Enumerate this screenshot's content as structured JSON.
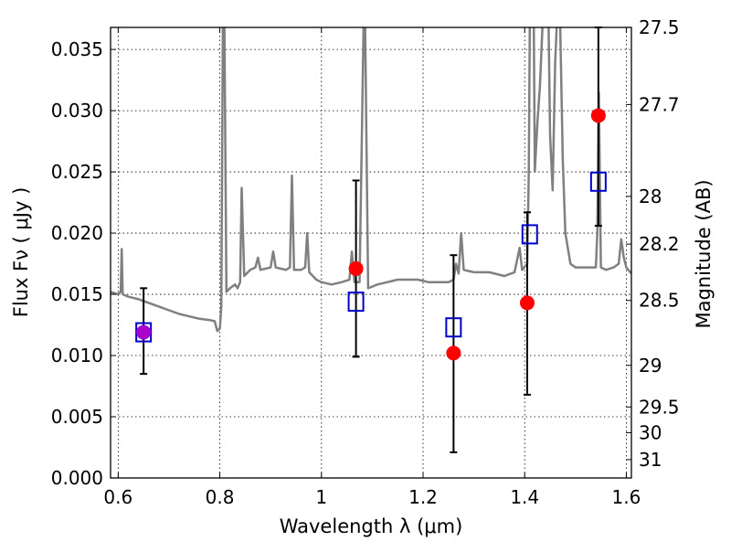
{
  "chart_data": {
    "type": "scatter",
    "xlabel": "Wavelength  λ (μm)",
    "ylabel": "Flux  Fν  ( μJy )",
    "y2label": "Magnitude (AB)",
    "xlim": [
      0.585,
      1.61
    ],
    "ylim": [
      0.0,
      0.0368
    ],
    "grid": true,
    "x_ticks": [
      0.6,
      0.8,
      1.0,
      1.2,
      1.4,
      1.6
    ],
    "x_tick_labels": [
      "0.6",
      "0.8",
      "1",
      "1.2",
      "1.4",
      "1.6"
    ],
    "y_ticks": [
      0.0,
      0.005,
      0.01,
      0.015,
      0.02,
      0.025,
      0.03,
      0.035
    ],
    "y_tick_labels": [
      "0.000",
      "0.005",
      "0.010",
      "0.015",
      "0.020",
      "0.025",
      "0.030",
      "0.035"
    ],
    "y2_ticks": [
      {
        "flux": 0.0368,
        "label": "27.5"
      },
      {
        "flux": 0.0305,
        "label": "27.7"
      },
      {
        "flux": 0.023,
        "label": "28"
      },
      {
        "flux": 0.0191,
        "label": "28.2"
      },
      {
        "flux": 0.0145,
        "label": "28.5"
      },
      {
        "flux": 0.0092,
        "label": "29"
      },
      {
        "flux": 0.0058,
        "label": "29.5"
      },
      {
        "flux": 0.0037,
        "label": "30"
      },
      {
        "flux": 0.0015,
        "label": "31"
      }
    ],
    "colors": {
      "template": "#808080",
      "observed": "#ff0000",
      "model": "#0000cc",
      "error_bar": "#000000",
      "overlap": "#aa00cc"
    },
    "series": [
      {
        "type": "line",
        "points": [
          [
            0.585,
            0.0152
          ],
          [
            0.6,
            0.015
          ],
          [
            0.605,
            0.0152
          ],
          [
            0.607,
            0.0187
          ],
          [
            0.609,
            0.015
          ],
          [
            0.62,
            0.0148
          ],
          [
            0.64,
            0.0146
          ],
          [
            0.66,
            0.0143
          ],
          [
            0.68,
            0.014
          ],
          [
            0.7,
            0.0137
          ],
          [
            0.72,
            0.0134
          ],
          [
            0.74,
            0.0132
          ],
          [
            0.76,
            0.013
          ],
          [
            0.78,
            0.0129
          ],
          [
            0.79,
            0.0128
          ],
          [
            0.795,
            0.012
          ],
          [
            0.8,
            0.0122
          ],
          [
            0.803,
            0.014
          ],
          [
            0.806,
            0.0369
          ],
          [
            0.809,
            0.0369
          ],
          [
            0.813,
            0.0152
          ],
          [
            0.82,
            0.0155
          ],
          [
            0.83,
            0.0158
          ],
          [
            0.835,
            0.0155
          ],
          [
            0.84,
            0.016
          ],
          [
            0.843,
            0.0237
          ],
          [
            0.848,
            0.0165
          ],
          [
            0.86,
            0.017
          ],
          [
            0.87,
            0.0172
          ],
          [
            0.875,
            0.018
          ],
          [
            0.88,
            0.017
          ],
          [
            0.9,
            0.0172
          ],
          [
            0.905,
            0.0185
          ],
          [
            0.91,
            0.0172
          ],
          [
            0.93,
            0.017
          ],
          [
            0.938,
            0.0172
          ],
          [
            0.942,
            0.0247
          ],
          [
            0.946,
            0.017
          ],
          [
            0.96,
            0.017
          ],
          [
            0.968,
            0.0172
          ],
          [
            0.972,
            0.02
          ],
          [
            0.976,
            0.0168
          ],
          [
            0.99,
            0.0162
          ],
          [
            1.0,
            0.016
          ],
          [
            1.02,
            0.0158
          ],
          [
            1.04,
            0.016
          ],
          [
            1.055,
            0.0162
          ],
          [
            1.06,
            0.0185
          ],
          [
            1.065,
            0.016
          ],
          [
            1.075,
            0.016
          ],
          [
            1.083,
            0.0369
          ],
          [
            1.086,
            0.0369
          ],
          [
            1.092,
            0.0155
          ],
          [
            1.11,
            0.0158
          ],
          [
            1.13,
            0.016
          ],
          [
            1.15,
            0.0162
          ],
          [
            1.17,
            0.0162
          ],
          [
            1.19,
            0.0162
          ],
          [
            1.21,
            0.016
          ],
          [
            1.23,
            0.016
          ],
          [
            1.25,
            0.016
          ],
          [
            1.26,
            0.0162
          ],
          [
            1.265,
            0.0175
          ],
          [
            1.27,
            0.0167
          ],
          [
            1.275,
            0.02
          ],
          [
            1.28,
            0.017
          ],
          [
            1.3,
            0.0168
          ],
          [
            1.33,
            0.0168
          ],
          [
            1.36,
            0.0165
          ],
          [
            1.38,
            0.0168
          ],
          [
            1.39,
            0.0188
          ],
          [
            1.395,
            0.017
          ],
          [
            1.405,
            0.0175
          ],
          [
            1.408,
            0.025
          ],
          [
            1.41,
            0.0369
          ],
          [
            1.418,
            0.0369
          ],
          [
            1.42,
            0.025
          ],
          [
            1.425,
            0.029
          ],
          [
            1.43,
            0.032
          ],
          [
            1.435,
            0.0369
          ],
          [
            1.447,
            0.0369
          ],
          [
            1.45,
            0.028
          ],
          [
            1.455,
            0.0235
          ],
          [
            1.46,
            0.034
          ],
          [
            1.463,
            0.0369
          ],
          [
            1.47,
            0.0369
          ],
          [
            1.475,
            0.026
          ],
          [
            1.48,
            0.02
          ],
          [
            1.49,
            0.0175
          ],
          [
            1.5,
            0.0172
          ],
          [
            1.52,
            0.0172
          ],
          [
            1.54,
            0.0172
          ],
          [
            1.543,
            0.02
          ],
          [
            1.546,
            0.0315
          ],
          [
            1.55,
            0.0172
          ],
          [
            1.56,
            0.017
          ],
          [
            1.575,
            0.0172
          ],
          [
            1.585,
            0.0175
          ],
          [
            1.59,
            0.0195
          ],
          [
            1.595,
            0.018
          ],
          [
            1.6,
            0.0172
          ],
          [
            1.61,
            0.0167
          ]
        ]
      },
      {
        "type": "scatter",
        "marker": "circle",
        "x": [
          0.65,
          1.068,
          1.26,
          1.405,
          1.545
        ],
        "y": [
          0.0119,
          0.0171,
          0.0102,
          0.0143,
          0.0296
        ]
      },
      {
        "type": "scatter",
        "marker": "open-square",
        "x": [
          0.65,
          1.068,
          1.26,
          1.41,
          1.545
        ],
        "y": [
          0.0119,
          0.0144,
          0.0123,
          0.0199,
          0.0242
        ]
      }
    ],
    "error_bars": [
      {
        "x": 0.65,
        "low": 0.0085,
        "high": 0.0155
      },
      {
        "x": 1.068,
        "low": 0.0099,
        "high": 0.0243
      },
      {
        "x": 1.26,
        "low": 0.0021,
        "high": 0.0182
      },
      {
        "x": 1.405,
        "low": 0.0068,
        "high": 0.0217
      },
      {
        "x": 1.545,
        "low": 0.0206,
        "high": 0.0368
      }
    ]
  }
}
